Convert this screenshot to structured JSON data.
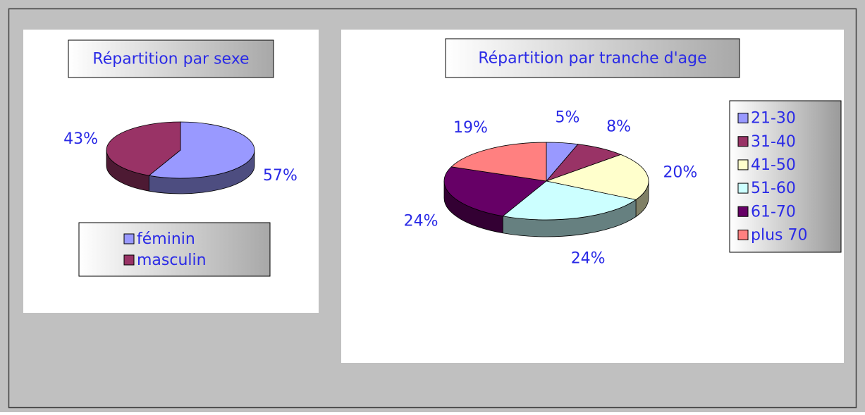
{
  "chart_data": [
    {
      "type": "pie",
      "title": "Répartition par sexe",
      "categories": [
        "féminin",
        "masculin"
      ],
      "values": [
        57,
        43
      ],
      "value_labels": [
        "57%",
        "43%"
      ],
      "colors": [
        "#9999ff",
        "#993366"
      ],
      "legend": "bottom"
    },
    {
      "type": "pie",
      "title": "Répartition par tranche d'age",
      "categories": [
        "21-30",
        "31-40",
        "41-50",
        "51-60",
        "61-70",
        "plus 70"
      ],
      "values": [
        5,
        8,
        20,
        24,
        24,
        19
      ],
      "value_labels": [
        "5%",
        "8%",
        "20%",
        "24%",
        "24%",
        "19%"
      ],
      "colors": [
        "#9999ff",
        "#993366",
        "#ffffcc",
        "#ccffff",
        "#660066",
        "#ff8080"
      ],
      "legend": "right"
    }
  ]
}
